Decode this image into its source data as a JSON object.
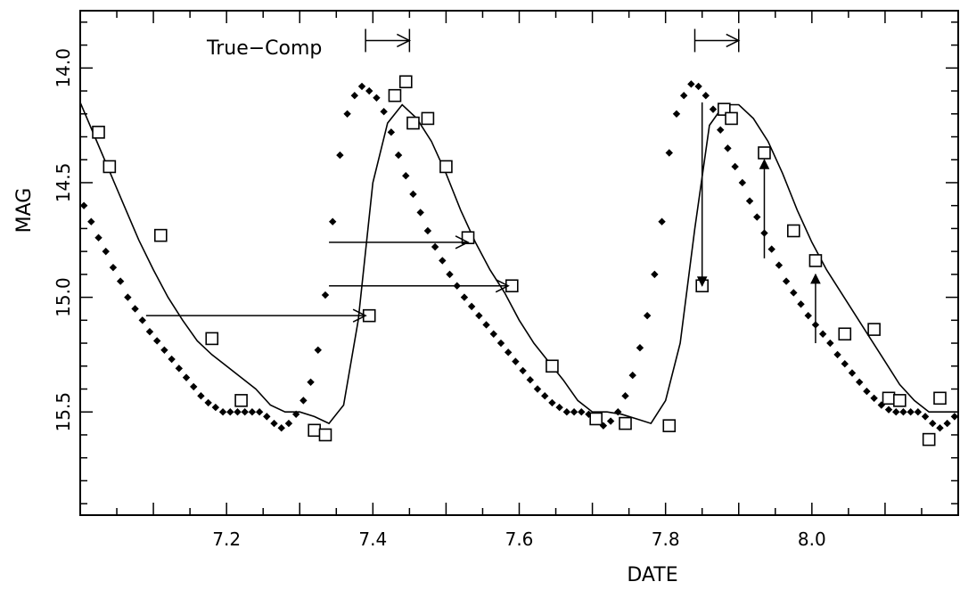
{
  "chart_data": {
    "type": "scatter",
    "xlabel": "DATE",
    "ylabel": "MAG",
    "xlim": [
      7.0,
      8.2
    ],
    "ylim": [
      15.95,
      13.75
    ],
    "y_inverted": true,
    "grid": false,
    "xticks": [
      7.2,
      7.4,
      7.6,
      7.8,
      8.0
    ],
    "xtick_labels": [
      "7.2",
      "7.4",
      "7.6",
      "7.8",
      "8.0"
    ],
    "yticks": [
      14.0,
      14.5,
      15.0,
      15.5
    ],
    "ytick_labels": [
      "14.0",
      "14.5",
      "15.0",
      "15.5"
    ],
    "annotation": "True−Comp",
    "series": [
      {
        "marker": "diamond",
        "points": [
          [
            7.005,
            14.6
          ],
          [
            7.015,
            14.67
          ],
          [
            7.025,
            14.74
          ],
          [
            7.035,
            14.8
          ],
          [
            7.045,
            14.87
          ],
          [
            7.055,
            14.93
          ],
          [
            7.065,
            15.0
          ],
          [
            7.075,
            15.05
          ],
          [
            7.085,
            15.1
          ],
          [
            7.095,
            15.15
          ],
          [
            7.105,
            15.19
          ],
          [
            7.115,
            15.23
          ],
          [
            7.125,
            15.27
          ],
          [
            7.135,
            15.31
          ],
          [
            7.145,
            15.35
          ],
          [
            7.155,
            15.39
          ],
          [
            7.165,
            15.43
          ],
          [
            7.175,
            15.46
          ],
          [
            7.185,
            15.48
          ],
          [
            7.195,
            15.5
          ],
          [
            7.205,
            15.5
          ],
          [
            7.215,
            15.5
          ],
          [
            7.225,
            15.5
          ],
          [
            7.235,
            15.5
          ],
          [
            7.245,
            15.5
          ],
          [
            7.255,
            15.52
          ],
          [
            7.265,
            15.55
          ],
          [
            7.275,
            15.57
          ],
          [
            7.285,
            15.55
          ],
          [
            7.295,
            15.51
          ],
          [
            7.305,
            15.45
          ],
          [
            7.315,
            15.37
          ],
          [
            7.325,
            15.23
          ],
          [
            7.335,
            14.99
          ],
          [
            7.345,
            14.67
          ],
          [
            7.355,
            14.38
          ],
          [
            7.365,
            14.2
          ],
          [
            7.375,
            14.12
          ],
          [
            7.385,
            14.08
          ],
          [
            7.395,
            14.1
          ],
          [
            7.405,
            14.13
          ],
          [
            7.415,
            14.19
          ],
          [
            7.425,
            14.28
          ],
          [
            7.435,
            14.38
          ],
          [
            7.445,
            14.47
          ],
          [
            7.455,
            14.55
          ],
          [
            7.465,
            14.63
          ],
          [
            7.475,
            14.71
          ],
          [
            7.485,
            14.78
          ],
          [
            7.495,
            14.84
          ],
          [
            7.505,
            14.9
          ],
          [
            7.515,
            14.95
          ],
          [
            7.525,
            15.0
          ],
          [
            7.535,
            15.04
          ],
          [
            7.545,
            15.08
          ],
          [
            7.555,
            15.12
          ],
          [
            7.565,
            15.16
          ],
          [
            7.575,
            15.2
          ],
          [
            7.585,
            15.24
          ],
          [
            7.595,
            15.28
          ],
          [
            7.605,
            15.32
          ],
          [
            7.615,
            15.36
          ],
          [
            7.625,
            15.4
          ],
          [
            7.635,
            15.43
          ],
          [
            7.645,
            15.46
          ],
          [
            7.655,
            15.48
          ],
          [
            7.665,
            15.5
          ],
          [
            7.675,
            15.5
          ],
          [
            7.685,
            15.5
          ],
          [
            7.695,
            15.51
          ],
          [
            7.705,
            15.53
          ],
          [
            7.715,
            15.56
          ],
          [
            7.725,
            15.54
          ],
          [
            7.735,
            15.5
          ],
          [
            7.745,
            15.43
          ],
          [
            7.755,
            15.34
          ],
          [
            7.765,
            15.22
          ],
          [
            7.775,
            15.08
          ],
          [
            7.785,
            14.9
          ],
          [
            7.795,
            14.67
          ],
          [
            7.805,
            14.37
          ],
          [
            7.815,
            14.2
          ],
          [
            7.825,
            14.12
          ],
          [
            7.835,
            14.07
          ],
          [
            7.845,
            14.08
          ],
          [
            7.855,
            14.12
          ],
          [
            7.865,
            14.18
          ],
          [
            7.875,
            14.27
          ],
          [
            7.885,
            14.35
          ],
          [
            7.895,
            14.43
          ],
          [
            7.905,
            14.5
          ],
          [
            7.915,
            14.58
          ],
          [
            7.925,
            14.65
          ],
          [
            7.935,
            14.72
          ],
          [
            7.945,
            14.79
          ],
          [
            7.955,
            14.86
          ],
          [
            7.965,
            14.93
          ],
          [
            7.975,
            14.98
          ],
          [
            7.985,
            15.03
          ],
          [
            7.995,
            15.08
          ],
          [
            8.005,
            15.12
          ],
          [
            8.015,
            15.16
          ],
          [
            8.025,
            15.2
          ],
          [
            8.035,
            15.25
          ],
          [
            8.045,
            15.29
          ],
          [
            8.055,
            15.33
          ],
          [
            8.065,
            15.37
          ],
          [
            8.075,
            15.41
          ],
          [
            8.085,
            15.44
          ],
          [
            8.095,
            15.47
          ],
          [
            8.105,
            15.49
          ],
          [
            8.115,
            15.5
          ],
          [
            8.125,
            15.5
          ],
          [
            8.135,
            15.5
          ],
          [
            8.145,
            15.5
          ],
          [
            8.155,
            15.52
          ],
          [
            8.165,
            15.55
          ],
          [
            8.175,
            15.57
          ],
          [
            8.185,
            15.55
          ],
          [
            8.195,
            15.52
          ]
        ]
      },
      {
        "marker": "open-square",
        "points": [
          [
            7.025,
            14.28
          ],
          [
            7.04,
            14.43
          ],
          [
            7.11,
            14.73
          ],
          [
            7.18,
            15.18
          ],
          [
            7.22,
            15.45
          ],
          [
            7.32,
            15.58
          ],
          [
            7.335,
            15.6
          ],
          [
            7.395,
            15.08
          ],
          [
            7.43,
            14.12
          ],
          [
            7.445,
            14.06
          ],
          [
            7.455,
            14.24
          ],
          [
            7.475,
            14.22
          ],
          [
            7.5,
            14.43
          ],
          [
            7.53,
            14.74
          ],
          [
            7.59,
            14.95
          ],
          [
            7.645,
            15.3
          ],
          [
            7.705,
            15.53
          ],
          [
            7.745,
            15.55
          ],
          [
            7.805,
            15.56
          ],
          [
            7.85,
            14.95
          ],
          [
            7.88,
            14.18
          ],
          [
            7.89,
            14.22
          ],
          [
            7.935,
            14.37
          ],
          [
            7.975,
            14.71
          ],
          [
            8.005,
            14.84
          ],
          [
            8.045,
            15.16
          ],
          [
            8.085,
            15.14
          ],
          [
            8.105,
            15.44
          ],
          [
            8.12,
            15.45
          ],
          [
            8.16,
            15.62
          ],
          [
            8.175,
            15.44
          ]
        ]
      },
      {
        "marker": "line",
        "points": [
          [
            7.0,
            14.15
          ],
          [
            7.02,
            14.3
          ],
          [
            7.04,
            14.45
          ],
          [
            7.06,
            14.6
          ],
          [
            7.08,
            14.75
          ],
          [
            7.1,
            14.88
          ],
          [
            7.12,
            15.0
          ],
          [
            7.14,
            15.1
          ],
          [
            7.16,
            15.19
          ],
          [
            7.18,
            15.25
          ],
          [
            7.2,
            15.3
          ],
          [
            7.22,
            15.35
          ],
          [
            7.24,
            15.4
          ],
          [
            7.26,
            15.47
          ],
          [
            7.28,
            15.5
          ],
          [
            7.3,
            15.5
          ],
          [
            7.32,
            15.52
          ],
          [
            7.34,
            15.55
          ],
          [
            7.36,
            15.47
          ],
          [
            7.38,
            15.1
          ],
          [
            7.4,
            14.5
          ],
          [
            7.42,
            14.24
          ],
          [
            7.44,
            14.16
          ],
          [
            7.46,
            14.22
          ],
          [
            7.48,
            14.32
          ],
          [
            7.5,
            14.46
          ],
          [
            7.52,
            14.62
          ],
          [
            7.54,
            14.76
          ],
          [
            7.56,
            14.88
          ],
          [
            7.58,
            14.98
          ],
          [
            7.6,
            15.1
          ],
          [
            7.62,
            15.2
          ],
          [
            7.64,
            15.28
          ],
          [
            7.66,
            15.36
          ],
          [
            7.68,
            15.45
          ],
          [
            7.7,
            15.5
          ],
          [
            7.72,
            15.5
          ],
          [
            7.74,
            15.51
          ],
          [
            7.76,
            15.53
          ],
          [
            7.78,
            15.55
          ],
          [
            7.8,
            15.45
          ],
          [
            7.82,
            15.2
          ],
          [
            7.84,
            14.7
          ],
          [
            7.86,
            14.25
          ],
          [
            7.88,
            14.16
          ],
          [
            7.9,
            14.16
          ],
          [
            7.92,
            14.22
          ],
          [
            7.94,
            14.32
          ],
          [
            7.96,
            14.46
          ],
          [
            7.98,
            14.62
          ],
          [
            8.0,
            14.76
          ],
          [
            8.02,
            14.88
          ],
          [
            8.04,
            14.98
          ],
          [
            8.06,
            15.08
          ],
          [
            8.08,
            15.18
          ],
          [
            8.1,
            15.28
          ],
          [
            8.12,
            15.38
          ],
          [
            8.14,
            15.45
          ],
          [
            8.16,
            15.5
          ],
          [
            8.18,
            15.5
          ],
          [
            8.2,
            15.5
          ]
        ]
      }
    ],
    "horizontal_arrows": [
      {
        "x1": 7.09,
        "x2": 7.39,
        "y": 15.08
      },
      {
        "x1": 7.34,
        "x2": 7.53,
        "y": 14.76
      },
      {
        "x1": 7.34,
        "x2": 7.585,
        "y": 14.95
      }
    ],
    "vertical_arrows": [
      {
        "x": 7.85,
        "y1": 14.15,
        "y2": 14.95
      },
      {
        "x": 7.935,
        "y1": 14.83,
        "y2": 14.4
      },
      {
        "x": 8.005,
        "y1": 15.2,
        "y2": 14.9
      }
    ],
    "bracket_arrows": [
      {
        "x1": 7.39,
        "x2": 7.45,
        "y": 13.88
      },
      {
        "x1": 7.84,
        "x2": 7.9,
        "y": 13.88
      }
    ]
  }
}
